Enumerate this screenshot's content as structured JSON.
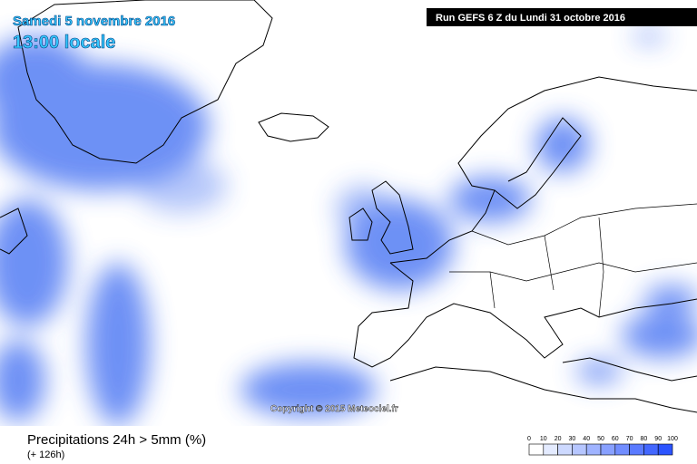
{
  "header": {
    "date": "Samedi 5 novembre 2016",
    "time": "13:00 locale",
    "run": "Run GEFS 6 Z du Lundi 31 octobre 2016"
  },
  "copyright": "Copyright © 2015 Meteociel.fr",
  "footer": {
    "title": "Precipitations 24h > 5mm (%)",
    "lead": "(+ 126h)"
  },
  "legend": {
    "ticks": [
      0,
      10,
      20,
      30,
      40,
      50,
      60,
      70,
      80,
      90,
      100
    ],
    "colors": [
      "#ffffff",
      "#e4ebff",
      "#cdd9ff",
      "#b6c6ff",
      "#9fb3ff",
      "#88a0ff",
      "#718dff",
      "#5a7aff",
      "#4367ff",
      "#2c54ff"
    ]
  }
}
